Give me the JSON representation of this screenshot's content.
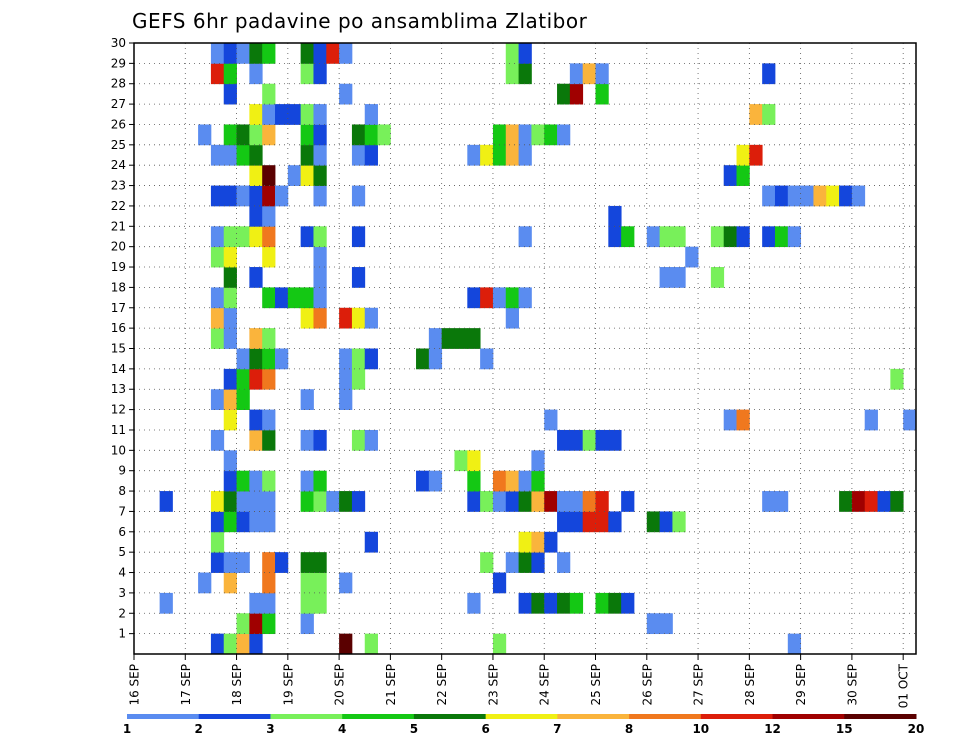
{
  "chart_data": {
    "type": "heatmap",
    "title": "GEFS 6hr padavine po ansamblima Zlatibor",
    "xlabel": "",
    "ylabel": "",
    "x_unit": "6hr",
    "x_range": [
      0,
      61
    ],
    "x_ticks": [
      {
        "x": 0,
        "label": "16 SEP"
      },
      {
        "x": 4,
        "label": "17 SEP"
      },
      {
        "x": 8,
        "label": "18 SEP"
      },
      {
        "x": 12,
        "label": "19 SEP"
      },
      {
        "x": 16,
        "label": "20 SEP"
      },
      {
        "x": 20,
        "label": "21 SEP"
      },
      {
        "x": 24,
        "label": "22 SEP"
      },
      {
        "x": 28,
        "label": "23 SEP"
      },
      {
        "x": 32,
        "label": "24 SEP"
      },
      {
        "x": 36,
        "label": "25 SEP"
      },
      {
        "x": 40,
        "label": "26 SEP"
      },
      {
        "x": 44,
        "label": "27 SEP"
      },
      {
        "x": 48,
        "label": "28 SEP"
      },
      {
        "x": 52,
        "label": "29 SEP"
      },
      {
        "x": 56,
        "label": "30 SEP"
      },
      {
        "x": 60,
        "label": "01 OCT"
      }
    ],
    "y_ticks": [
      "1",
      "2",
      "3",
      "4",
      "5",
      "6",
      "7",
      "8",
      "9",
      "10",
      "11",
      "12",
      "13",
      "14",
      "15",
      "16",
      "17",
      "18",
      "19",
      "20",
      "21",
      "22",
      "23",
      "24",
      "25",
      "26",
      "27",
      "28",
      "29",
      "30"
    ],
    "y_range": [
      0,
      30
    ],
    "grid": true,
    "legend": {
      "placement": "bottom",
      "labels": [
        "1",
        "2",
        "3",
        "4",
        "5",
        "6",
        "7",
        "8",
        "10",
        "12",
        "15",
        "20"
      ],
      "colors": [
        "#b4c8f0",
        "#5a8cf0",
        "#1446dc",
        "#78f05a",
        "#14c814",
        "#0a780a",
        "#f0f014",
        "#fab43c",
        "#f0781e",
        "#dc1e0a",
        "#a00000",
        "#5a0000"
      ]
    },
    "cells": [
      [
        6,
        0,
        2
      ],
      [
        7,
        0,
        3
      ],
      [
        8,
        0,
        7
      ],
      [
        9,
        0,
        2
      ],
      [
        16,
        0,
        11
      ],
      [
        18,
        0,
        3
      ],
      [
        28,
        0,
        3
      ],
      [
        51,
        0,
        1
      ],
      [
        8,
        1,
        3
      ],
      [
        9,
        1,
        10
      ],
      [
        10,
        1,
        4
      ],
      [
        13,
        1,
        1
      ],
      [
        40,
        1,
        1
      ],
      [
        41,
        1,
        1
      ],
      [
        2,
        2,
        1
      ],
      [
        9,
        2,
        1
      ],
      [
        10,
        2,
        1
      ],
      [
        13,
        2,
        3
      ],
      [
        14,
        2,
        3
      ],
      [
        26,
        2,
        1
      ],
      [
        30,
        2,
        2
      ],
      [
        31,
        2,
        5
      ],
      [
        32,
        2,
        2
      ],
      [
        33,
        2,
        5
      ],
      [
        34,
        2,
        4
      ],
      [
        36,
        2,
        4
      ],
      [
        37,
        2,
        5
      ],
      [
        38,
        2,
        2
      ],
      [
        5,
        3,
        1
      ],
      [
        7,
        3,
        7
      ],
      [
        10,
        3,
        8
      ],
      [
        13,
        3,
        3
      ],
      [
        14,
        3,
        3
      ],
      [
        16,
        3,
        1
      ],
      [
        28,
        3,
        2
      ],
      [
        6,
        4,
        2
      ],
      [
        7,
        4,
        1
      ],
      [
        8,
        4,
        1
      ],
      [
        10,
        4,
        8
      ],
      [
        11,
        4,
        2
      ],
      [
        13,
        4,
        5
      ],
      [
        14,
        4,
        5
      ],
      [
        27,
        4,
        3
      ],
      [
        29,
        4,
        1
      ],
      [
        30,
        4,
        5
      ],
      [
        31,
        4,
        2
      ],
      [
        33,
        4,
        1
      ],
      [
        6,
        5,
        3
      ],
      [
        18,
        5,
        2
      ],
      [
        30,
        5,
        6
      ],
      [
        31,
        5,
        7
      ],
      [
        32,
        5,
        2
      ],
      [
        6,
        6,
        2
      ],
      [
        7,
        6,
        4
      ],
      [
        8,
        6,
        2
      ],
      [
        9,
        6,
        1
      ],
      [
        10,
        6,
        1
      ],
      [
        33,
        6,
        2
      ],
      [
        34,
        6,
        2
      ],
      [
        35,
        6,
        9
      ],
      [
        36,
        6,
        9
      ],
      [
        37,
        6,
        2
      ],
      [
        40,
        6,
        5
      ],
      [
        41,
        6,
        2
      ],
      [
        42,
        6,
        3
      ],
      [
        2,
        7,
        2
      ],
      [
        6,
        7,
        6
      ],
      [
        7,
        7,
        5
      ],
      [
        8,
        7,
        1
      ],
      [
        9,
        7,
        1
      ],
      [
        10,
        7,
        1
      ],
      [
        13,
        7,
        4
      ],
      [
        14,
        7,
        3
      ],
      [
        15,
        7,
        1
      ],
      [
        16,
        7,
        5
      ],
      [
        17,
        7,
        2
      ],
      [
        26,
        7,
        2
      ],
      [
        27,
        7,
        3
      ],
      [
        28,
        7,
        1
      ],
      [
        29,
        7,
        2
      ],
      [
        30,
        7,
        5
      ],
      [
        31,
        7,
        7
      ],
      [
        32,
        7,
        10
      ],
      [
        33,
        7,
        1
      ],
      [
        34,
        7,
        1
      ],
      [
        35,
        7,
        8
      ],
      [
        36,
        7,
        9
      ],
      [
        38,
        7,
        2
      ],
      [
        49,
        7,
        1
      ],
      [
        50,
        7,
        1
      ],
      [
        55,
        7,
        5
      ],
      [
        56,
        7,
        10
      ],
      [
        57,
        7,
        9
      ],
      [
        58,
        7,
        2
      ],
      [
        59,
        7,
        5
      ],
      [
        7,
        8,
        2
      ],
      [
        8,
        8,
        4
      ],
      [
        9,
        8,
        1
      ],
      [
        10,
        8,
        3
      ],
      [
        13,
        8,
        1
      ],
      [
        14,
        8,
        4
      ],
      [
        22,
        8,
        2
      ],
      [
        23,
        8,
        1
      ],
      [
        26,
        8,
        4
      ],
      [
        28,
        8,
        8
      ],
      [
        29,
        8,
        7
      ],
      [
        30,
        8,
        1
      ],
      [
        31,
        8,
        4
      ],
      [
        7,
        9,
        1
      ],
      [
        25,
        9,
        3
      ],
      [
        26,
        9,
        6
      ],
      [
        31,
        9,
        1
      ],
      [
        6,
        10,
        1
      ],
      [
        9,
        10,
        7
      ],
      [
        10,
        10,
        5
      ],
      [
        13,
        10,
        1
      ],
      [
        14,
        10,
        2
      ],
      [
        17,
        10,
        3
      ],
      [
        18,
        10,
        1
      ],
      [
        33,
        10,
        2
      ],
      [
        34,
        10,
        2
      ],
      [
        35,
        10,
        3
      ],
      [
        36,
        10,
        2
      ],
      [
        37,
        10,
        2
      ],
      [
        7,
        11,
        6
      ],
      [
        9,
        11,
        2
      ],
      [
        10,
        11,
        1
      ],
      [
        32,
        11,
        1
      ],
      [
        46,
        11,
        1
      ],
      [
        47,
        11,
        8
      ],
      [
        57,
        11,
        1
      ],
      [
        60,
        11,
        1
      ],
      [
        6,
        12,
        1
      ],
      [
        7,
        12,
        7
      ],
      [
        8,
        12,
        4
      ],
      [
        13,
        12,
        1
      ],
      [
        16,
        12,
        1
      ],
      [
        7,
        13,
        2
      ],
      [
        8,
        13,
        4
      ],
      [
        9,
        13,
        9
      ],
      [
        10,
        13,
        8
      ],
      [
        16,
        13,
        1
      ],
      [
        17,
        13,
        3
      ],
      [
        59,
        13,
        3
      ],
      [
        8,
        14,
        1
      ],
      [
        9,
        14,
        5
      ],
      [
        10,
        14,
        4
      ],
      [
        11,
        14,
        1
      ],
      [
        16,
        14,
        1
      ],
      [
        17,
        14,
        3
      ],
      [
        18,
        14,
        2
      ],
      [
        22,
        14,
        5
      ],
      [
        23,
        14,
        1
      ],
      [
        27,
        14,
        1
      ],
      [
        6,
        15,
        3
      ],
      [
        7,
        15,
        1
      ],
      [
        9,
        15,
        7
      ],
      [
        10,
        15,
        3
      ],
      [
        23,
        15,
        1
      ],
      [
        24,
        15,
        5
      ],
      [
        25,
        15,
        5
      ],
      [
        26,
        15,
        5
      ],
      [
        6,
        16,
        7
      ],
      [
        7,
        16,
        1
      ],
      [
        13,
        16,
        6
      ],
      [
        14,
        16,
        8
      ],
      [
        16,
        16,
        9
      ],
      [
        17,
        16,
        6
      ],
      [
        18,
        16,
        1
      ],
      [
        29,
        16,
        1
      ],
      [
        6,
        17,
        1
      ],
      [
        7,
        17,
        3
      ],
      [
        10,
        17,
        4
      ],
      [
        11,
        17,
        2
      ],
      [
        12,
        17,
        4
      ],
      [
        13,
        17,
        4
      ],
      [
        14,
        17,
        1
      ],
      [
        26,
        17,
        2
      ],
      [
        27,
        17,
        9
      ],
      [
        28,
        17,
        1
      ],
      [
        29,
        17,
        4
      ],
      [
        30,
        17,
        1
      ],
      [
        7,
        18,
        5
      ],
      [
        9,
        18,
        2
      ],
      [
        14,
        18,
        1
      ],
      [
        17,
        18,
        2
      ],
      [
        41,
        18,
        1
      ],
      [
        42,
        18,
        1
      ],
      [
        45,
        18,
        3
      ],
      [
        6,
        19,
        3
      ],
      [
        7,
        19,
        6
      ],
      [
        10,
        19,
        6
      ],
      [
        14,
        19,
        1
      ],
      [
        43,
        19,
        1
      ],
      [
        6,
        20,
        1
      ],
      [
        7,
        20,
        3
      ],
      [
        8,
        20,
        3
      ],
      [
        9,
        20,
        6
      ],
      [
        10,
        20,
        8
      ],
      [
        13,
        20,
        2
      ],
      [
        14,
        20,
        3
      ],
      [
        17,
        20,
        2
      ],
      [
        30,
        20,
        1
      ],
      [
        37,
        20,
        2
      ],
      [
        38,
        20,
        4
      ],
      [
        40,
        20,
        1
      ],
      [
        41,
        20,
        3
      ],
      [
        42,
        20,
        3
      ],
      [
        45,
        20,
        3
      ],
      [
        46,
        20,
        5
      ],
      [
        47,
        20,
        2
      ],
      [
        49,
        20,
        2
      ],
      [
        50,
        20,
        4
      ],
      [
        51,
        20,
        1
      ],
      [
        9,
        21,
        2
      ],
      [
        10,
        21,
        1
      ],
      [
        37,
        21,
        2
      ],
      [
        6,
        22,
        2
      ],
      [
        7,
        22,
        2
      ],
      [
        8,
        22,
        1
      ],
      [
        9,
        22,
        2
      ],
      [
        10,
        22,
        10
      ],
      [
        11,
        22,
        1
      ],
      [
        14,
        22,
        1
      ],
      [
        17,
        22,
        1
      ],
      [
        49,
        22,
        1
      ],
      [
        50,
        22,
        2
      ],
      [
        51,
        22,
        1
      ],
      [
        52,
        22,
        1
      ],
      [
        53,
        22,
        7
      ],
      [
        54,
        22,
        6
      ],
      [
        55,
        22,
        2
      ],
      [
        56,
        22,
        1
      ],
      [
        9,
        23,
        6
      ],
      [
        10,
        23,
        11
      ],
      [
        12,
        23,
        1
      ],
      [
        13,
        23,
        6
      ],
      [
        14,
        23,
        5
      ],
      [
        46,
        23,
        2
      ],
      [
        47,
        23,
        4
      ],
      [
        6,
        24,
        1
      ],
      [
        7,
        24,
        1
      ],
      [
        8,
        24,
        4
      ],
      [
        9,
        24,
        5
      ],
      [
        13,
        24,
        5
      ],
      [
        14,
        24,
        1
      ],
      [
        17,
        24,
        1
      ],
      [
        18,
        24,
        2
      ],
      [
        26,
        24,
        1
      ],
      [
        27,
        24,
        6
      ],
      [
        28,
        24,
        4
      ],
      [
        29,
        24,
        7
      ],
      [
        30,
        24,
        1
      ],
      [
        47,
        24,
        6
      ],
      [
        48,
        24,
        9
      ],
      [
        5,
        25,
        1
      ],
      [
        7,
        25,
        4
      ],
      [
        8,
        25,
        5
      ],
      [
        9,
        25,
        3
      ],
      [
        10,
        25,
        7
      ],
      [
        13,
        25,
        4
      ],
      [
        14,
        25,
        2
      ],
      [
        17,
        25,
        5
      ],
      [
        18,
        25,
        4
      ],
      [
        19,
        25,
        3
      ],
      [
        28,
        25,
        4
      ],
      [
        29,
        25,
        7
      ],
      [
        30,
        25,
        1
      ],
      [
        31,
        25,
        3
      ],
      [
        32,
        25,
        4
      ],
      [
        33,
        25,
        1
      ],
      [
        9,
        26,
        6
      ],
      [
        10,
        26,
        1
      ],
      [
        11,
        26,
        2
      ],
      [
        12,
        26,
        2
      ],
      [
        13,
        26,
        3
      ],
      [
        14,
        26,
        1
      ],
      [
        18,
        26,
        1
      ],
      [
        48,
        26,
        7
      ],
      [
        49,
        26,
        3
      ],
      [
        7,
        27,
        2
      ],
      [
        10,
        27,
        3
      ],
      [
        16,
        27,
        1
      ],
      [
        33,
        27,
        5
      ],
      [
        34,
        27,
        10
      ],
      [
        36,
        27,
        4
      ],
      [
        6,
        28,
        9
      ],
      [
        7,
        28,
        4
      ],
      [
        9,
        28,
        1
      ],
      [
        13,
        28,
        3
      ],
      [
        14,
        28,
        2
      ],
      [
        29,
        28,
        3
      ],
      [
        30,
        28,
        5
      ],
      [
        34,
        28,
        1
      ],
      [
        35,
        28,
        7
      ],
      [
        36,
        28,
        1
      ],
      [
        49,
        28,
        2
      ],
      [
        6,
        29,
        1
      ],
      [
        7,
        29,
        2
      ],
      [
        8,
        29,
        1
      ],
      [
        9,
        29,
        5
      ],
      [
        10,
        29,
        4
      ],
      [
        13,
        29,
        5
      ],
      [
        14,
        29,
        2
      ],
      [
        15,
        29,
        9
      ],
      [
        16,
        29,
        1
      ],
      [
        29,
        29,
        3
      ],
      [
        30,
        29,
        2
      ]
    ]
  }
}
